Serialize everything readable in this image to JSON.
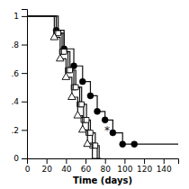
{
  "chart_data": {
    "type": "line",
    "xlabel": "Time (days)",
    "xlim": [
      0,
      155
    ],
    "ylim": [
      0,
      1.05
    ],
    "xticks": [
      0,
      20,
      40,
      60,
      80,
      100,
      120,
      140
    ],
    "yticks": [
      0,
      {
        "value": 0.2,
        "label": ".2"
      },
      {
        "value": 0.4,
        "label": ".4"
      },
      {
        "value": 0.6,
        "label": ".6"
      },
      {
        "value": 0.8,
        "label": ".8"
      },
      1.0
    ],
    "color": "#111111",
    "series": [
      {
        "type": "line",
        "line_style": "steps",
        "color": "#111111",
        "x": [
          0,
          30,
          30,
          38,
          38,
          48,
          48,
          57,
          57,
          65,
          65,
          72,
          72,
          80,
          80,
          88,
          88,
          98,
          98,
          110,
          110,
          155
        ],
        "values": [
          1.0,
          1.0,
          0.9,
          0.9,
          0.77,
          0.77,
          0.65,
          0.65,
          0.54,
          0.54,
          0.44,
          0.44,
          0.33,
          0.33,
          0.27,
          0.27,
          0.18,
          0.18,
          0.1,
          0.1,
          0.1,
          0.1
        ]
      },
      {
        "type": "scatter",
        "marker": "circle",
        "color": "#000000",
        "x": [
          30,
          38,
          48,
          57,
          65,
          72,
          80,
          88,
          98,
          110
        ],
        "values": [
          0.9,
          0.77,
          0.65,
          0.54,
          0.44,
          0.33,
          0.27,
          0.18,
          0.1,
          0.1
        ]
      },
      {
        "type": "line",
        "line_style": "steps",
        "color": "#111111",
        "x": [
          0,
          30,
          30,
          36,
          36,
          42,
          42,
          48,
          48,
          54,
          54,
          58,
          58,
          63,
          63,
          67,
          67,
          72,
          72,
          76,
          76
        ],
        "values": [
          1.0,
          1.0,
          0.88,
          0.88,
          0.75,
          0.75,
          0.62,
          0.62,
          0.5,
          0.5,
          0.38,
          0.38,
          0.27,
          0.27,
          0.18,
          0.18,
          0.09,
          0.09,
          0.0,
          0.0,
          0.0
        ]
      },
      {
        "type": "scatter",
        "marker": "square",
        "color": "#ffffff",
        "x": [
          30,
          36,
          42,
          48,
          54,
          58,
          63,
          67
        ],
        "values": [
          0.88,
          0.75,
          0.62,
          0.5,
          0.38,
          0.27,
          0.18,
          0.09
        ]
      },
      {
        "type": "line",
        "line_style": "steps",
        "color": "#111111",
        "x": [
          0,
          32,
          32,
          38,
          38,
          44,
          44,
          50,
          50,
          56,
          56,
          61,
          61,
          65,
          65,
          70,
          70,
          74,
          74
        ],
        "values": [
          1.0,
          1.0,
          0.88,
          0.88,
          0.75,
          0.75,
          0.62,
          0.62,
          0.5,
          0.5,
          0.38,
          0.38,
          0.27,
          0.27,
          0.18,
          0.18,
          0.09,
          0.09,
          0.0
        ]
      },
      {
        "type": "scatter",
        "marker": "square",
        "color": "#ffffff",
        "x": [
          32,
          38,
          44,
          50,
          56,
          61,
          65,
          70
        ],
        "values": [
          0.88,
          0.75,
          0.62,
          0.5,
          0.38,
          0.27,
          0.18,
          0.09
        ]
      },
      {
        "type": "line",
        "line_style": "steps",
        "color": "#111111",
        "x": [
          0,
          28,
          28,
          34,
          34,
          40,
          40,
          46,
          46,
          52,
          52,
          57,
          57,
          62,
          62,
          67,
          67,
          72,
          72
        ],
        "values": [
          1.0,
          1.0,
          0.85,
          0.85,
          0.7,
          0.7,
          0.57,
          0.57,
          0.43,
          0.43,
          0.3,
          0.3,
          0.2,
          0.2,
          0.1,
          0.1,
          0.0,
          0.0,
          0.0
        ]
      },
      {
        "type": "scatter",
        "marker": "triangle",
        "color": "#ffffff",
        "x": [
          28,
          34,
          40,
          46,
          52,
          57,
          62
        ],
        "values": [
          0.85,
          0.7,
          0.57,
          0.43,
          0.3,
          0.2,
          0.1
        ]
      }
    ],
    "annotations": [
      {
        "text": "*",
        "x": 82,
        "y": 0.195
      }
    ]
  }
}
